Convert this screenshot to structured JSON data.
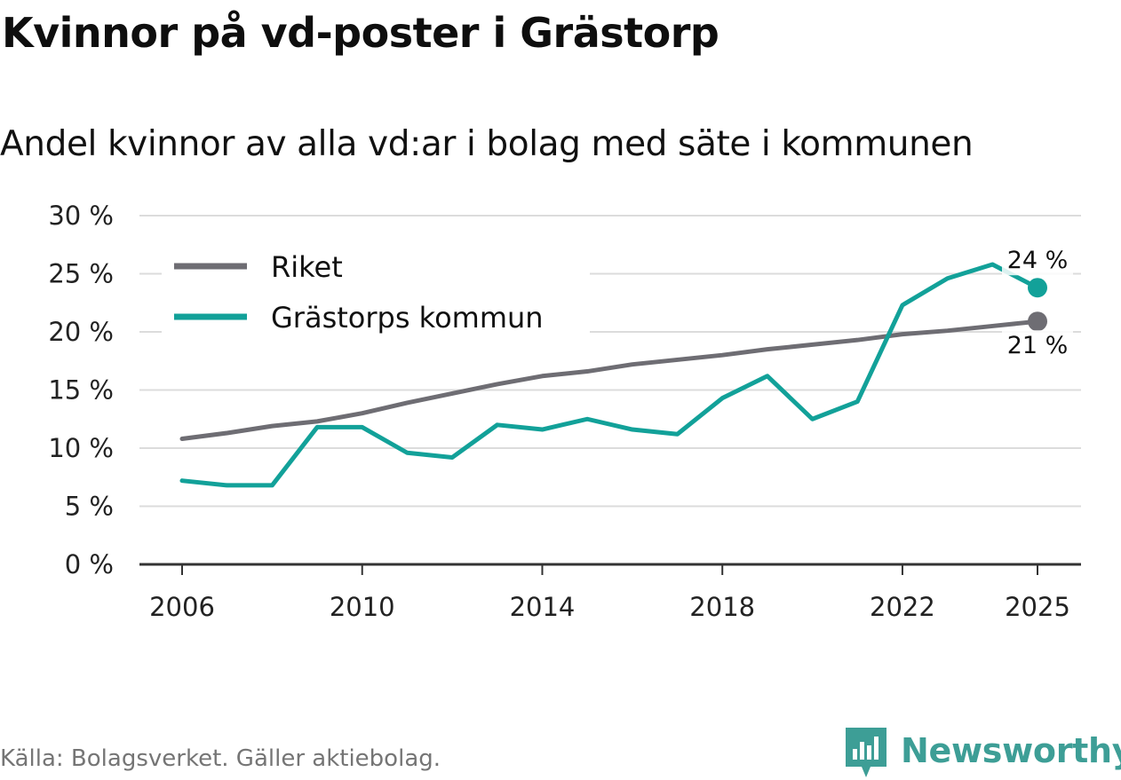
{
  "header": {
    "title": "Kvinnor på vd-poster i Grästorp",
    "subtitle": "Andel kvinnor av alla vd:ar i bolag med säte i kommunen"
  },
  "footer": {
    "source": "Källa: Bolagsverket. Gäller aktiebolag.",
    "brand": "Newsworthy",
    "brand_color": "#3d9e96"
  },
  "chart_data": {
    "type": "line",
    "title": "Kvinnor på vd-poster i Grästorp",
    "subtitle": "Andel kvinnor av alla vd:ar i bolag med säte i kommunen",
    "xlabel": "",
    "ylabel": "",
    "x": [
      2006,
      2007,
      2008,
      2009,
      2010,
      2011,
      2012,
      2013,
      2014,
      2015,
      2016,
      2017,
      2018,
      2019,
      2020,
      2021,
      2022,
      2023,
      2024,
      2025
    ],
    "xlim": [
      2005,
      2026
    ],
    "ylim": [
      0,
      30
    ],
    "x_ticks": [
      2006,
      2010,
      2014,
      2018,
      2022,
      2025
    ],
    "x_tick_labels": [
      "2006",
      "2010",
      "2014",
      "2018",
      "2022",
      "2025"
    ],
    "y_ticks": [
      0,
      5,
      10,
      15,
      20,
      25,
      30
    ],
    "y_tick_labels": [
      "0 %",
      "5 %",
      "10 %",
      "15 %",
      "20 %",
      "25 %",
      "30 %"
    ],
    "grid": true,
    "legend_position": "top-left",
    "series": [
      {
        "name": "Riket",
        "color": "#6e6d73",
        "values": [
          10.8,
          11.3,
          11.9,
          12.3,
          13.0,
          13.9,
          14.7,
          15.5,
          16.2,
          16.6,
          17.2,
          17.6,
          18.0,
          18.5,
          18.9,
          19.3,
          19.8,
          20.1,
          20.5,
          20.9
        ],
        "end_label": "21 %"
      },
      {
        "name": "Grästorps kommun",
        "color": "#12a199",
        "values": [
          7.2,
          6.8,
          6.8,
          11.8,
          11.8,
          9.6,
          9.2,
          12.0,
          11.6,
          12.5,
          11.6,
          11.2,
          14.3,
          16.2,
          12.5,
          14.0,
          22.3,
          24.6,
          25.8,
          23.8
        ],
        "end_label": "24 %"
      }
    ]
  }
}
